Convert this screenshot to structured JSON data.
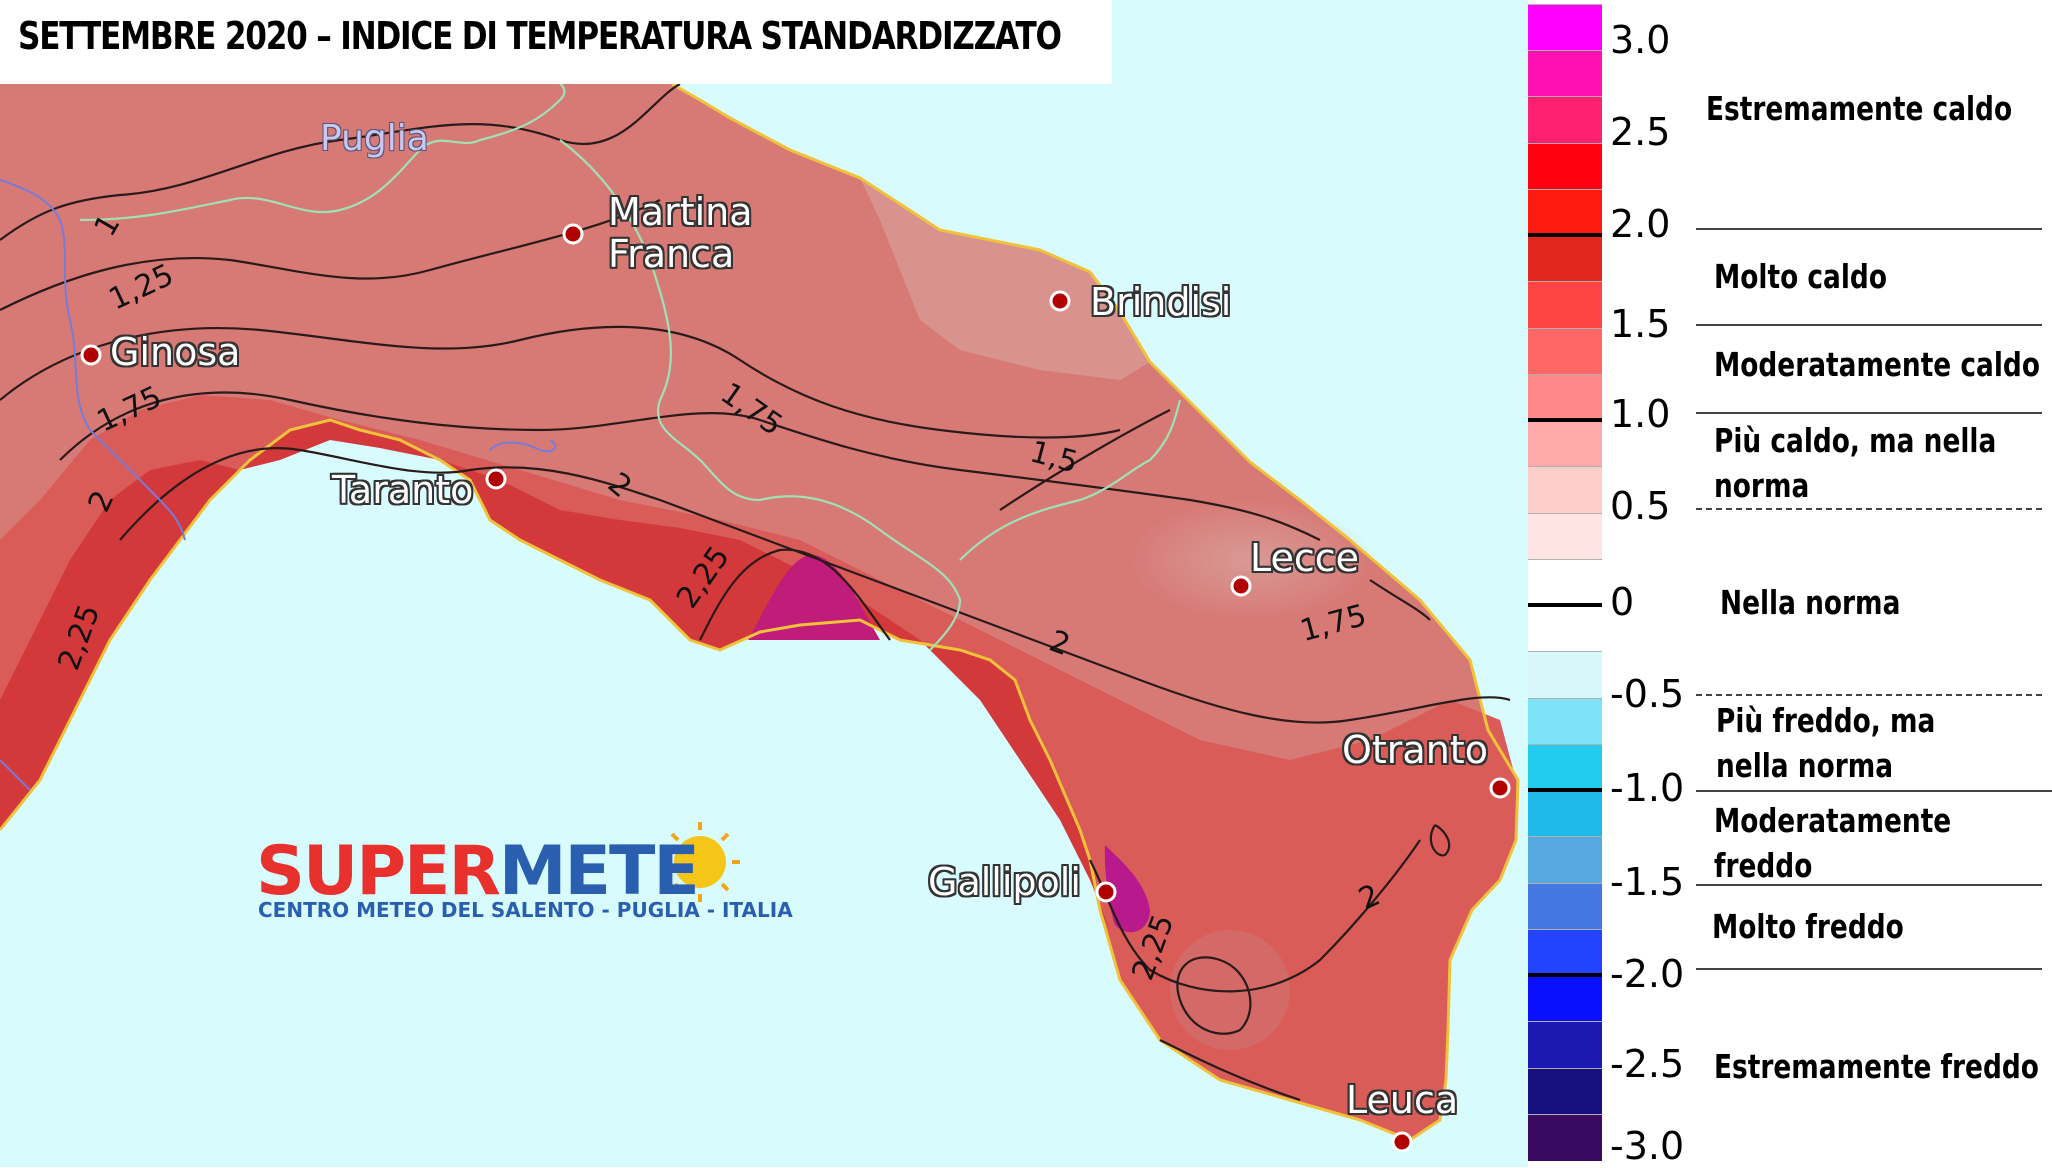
{
  "title": "SETTEMBRE 2020 – INDICE DI TEMPERATURA STANDARDIZZATO",
  "region": "Puglia",
  "cities": [
    "Martina Franca",
    "Brindisi",
    "Ginosa",
    "Taranto",
    "Lecce",
    "Otranto",
    "Gallipoli",
    "Leuca"
  ],
  "city_lines": {
    "martina_1": "Martina",
    "martina_2": "Franca"
  },
  "isolines": [
    "1",
    "1,25",
    "1,5",
    "1,75",
    "2",
    "2,25",
    "1,75",
    "1,5",
    "2",
    "2,25",
    "2",
    "2,25",
    "1,75",
    "2"
  ],
  "logo": {
    "part_a": "SUPER",
    "part_b": "METE",
    "subtitle": "CENTRO METEO DEL SALENTO - PUGLIA - ITALIA"
  },
  "scale": {
    "tick_labels": [
      "3.0",
      "2.5",
      "2.0",
      "1.5",
      "1.0",
      "0.5",
      "0",
      "-0.5",
      "-1.0",
      "-1.5",
      "-2.0",
      "-2.5",
      "-3.0"
    ],
    "colors": [
      "#ff00ff",
      "#ff10b0",
      "#ff2070",
      "#ff0010",
      "#ff1b10",
      "#e22720",
      "#ff4444",
      "#ff6666",
      "#ff8888",
      "#ffaaaa",
      "#ffcccc",
      "#ffe4e4",
      "#ffffff",
      "#ffffff",
      "#d8f7fb",
      "#7fe3f7",
      "#22ccee",
      "#1fb8ea",
      "#55a8e0",
      "#4478e0",
      "#2244ff",
      "#0a10ff",
      "#1a1ab0",
      "#16107f",
      "#3a0a60"
    ],
    "categories": [
      "Estremamente caldo",
      "Molto caldo",
      "Moderatamente caldo",
      "Più caldo, ma nella norma",
      "Nella norma",
      "Più freddo, ma nella norma",
      "Moderatamente freddo",
      "Molto freddo",
      "Estremamente freddo"
    ],
    "category_lines": {
      "piu_caldo_1": "Più caldo, ma nella",
      "piu_caldo_2": "norma",
      "piu_freddo_1": "Più freddo, ma",
      "piu_freddo_2": "nella norma",
      "mod_freddo_1": "Moderatamente",
      "mod_freddo_2": "freddo"
    }
  },
  "colors": {
    "sea": "#d8fbfd",
    "land_low": "#d88c88",
    "land_mid": "#d96260",
    "land_high": "#cf3432",
    "land_peak": "#c01c8c",
    "border_line": "#9fe0b4",
    "coast": "#f0c23a"
  }
}
